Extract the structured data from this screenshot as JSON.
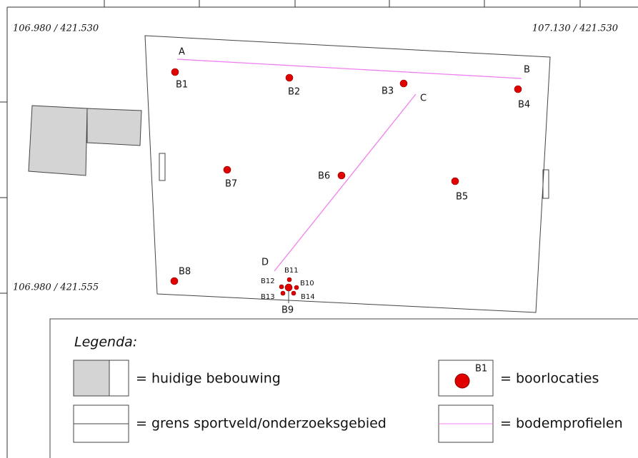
{
  "coordinates": [
    "106.980 / 421.530",
    "107.130 / 421.530",
    "106.980 / 421.555"
  ],
  "profile_points": [
    "A",
    "B",
    "C",
    "D"
  ],
  "boreholes": [
    "B1",
    "B2",
    "B3",
    "B4",
    "B5",
    "B6",
    "B7",
    "B8",
    "B9",
    "B10",
    "B11",
    "B12",
    "B13",
    "B14"
  ],
  "legend": {
    "title": "Legenda:",
    "sample_label": "B1",
    "items": [
      "= huidige bebouwing",
      "= grens sportveld/onderzoeksgebied",
      "= boorlocaties",
      "= bodemprofielen"
    ]
  }
}
